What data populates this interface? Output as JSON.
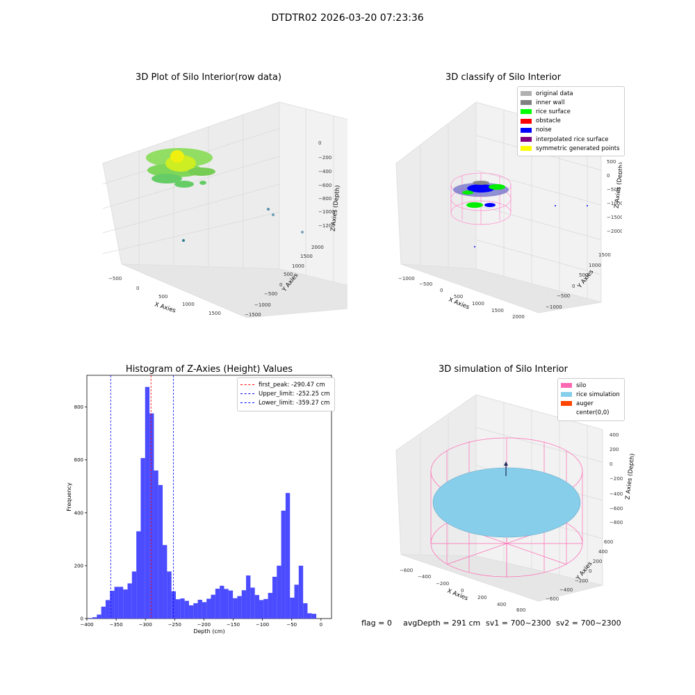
{
  "suptitle": "DTDTR02 2026-03-20 07:23:36",
  "footer": {
    "flag": "flag = 0",
    "avg_depth": "avgDepth = 291 cm",
    "sv1": "sv1 = 700~2300",
    "sv2": "sv2 = 700~2300"
  },
  "colors": {
    "histogram_bar": "#4b4bff",
    "first_peak": "#ff0000",
    "limits": "#0000ff",
    "silo": "#ff69b4",
    "rice_simulation": "#87ceeb",
    "auger": "#ff4500"
  },
  "chart_data": [
    {
      "type": "scatter",
      "title": "3D Plot of Silo Interior(row data)",
      "xlabel": "X Axies",
      "ylabel": "Y Axies",
      "zlabel": "Z Axies (Depth)",
      "x_ticks": [
        "−500",
        "0",
        "500",
        "1000",
        "1500"
      ],
      "y_ticks": [
        "−1500",
        "−1000",
        "−500",
        "0",
        "500",
        "1000",
        "1500",
        "2000"
      ],
      "z_ticks": [
        "0",
        "−200",
        "−400",
        "−600",
        "−800",
        "−1000",
        "−1200"
      ],
      "xlim": [
        -600,
        1800
      ],
      "ylim": [
        -1600,
        2100
      ],
      "zlim": [
        -1350,
        50
      ]
    },
    {
      "type": "scatter",
      "title": "3D classify of Silo Interior",
      "xlabel": "X Axies",
      "ylabel": "Y Axies",
      "zlabel": "Z Axies (Depth)",
      "x_ticks": [
        "−1000",
        "−500",
        "0",
        "500",
        "1000",
        "1500",
        "2000"
      ],
      "y_ticks": [
        "−1000",
        "−500",
        "0",
        "500",
        "1000",
        "1500"
      ],
      "z_ticks": [
        "1000",
        "500",
        "0",
        "−500",
        "−1000",
        "−1500",
        "−2000"
      ],
      "legend": [
        {
          "label": "original data",
          "color": "#b0b0b0"
        },
        {
          "label": "inner wall",
          "color": "#808080"
        },
        {
          "label": "rice surface",
          "color": "#00ff00"
        },
        {
          "label": "obstacle",
          "color": "#ff0000"
        },
        {
          "label": "noise",
          "color": "#0000ff"
        },
        {
          "label": "interpolated rice surface",
          "color": "#800080"
        },
        {
          "label": "symmetric generated points",
          "color": "#ffff00"
        }
      ],
      "legend_position": "top-right"
    },
    {
      "type": "bar",
      "title": "Histogram of Z-Axies (Height) Values",
      "xlabel": "Depth (cm)",
      "ylabel": "Frequency",
      "xlim": [
        -400,
        18
      ],
      "ylim": [
        0,
        920
      ],
      "x_ticks": [
        -400,
        -350,
        -300,
        -250,
        -200,
        -150,
        -100,
        -50,
        0
      ],
      "y_ticks": [
        0,
        200,
        400,
        600,
        800
      ],
      "bin_start": -398,
      "bin_width": 7.5,
      "values": [
        2,
        5,
        15,
        45,
        70,
        105,
        120,
        120,
        110,
        133,
        178,
        330,
        607,
        876,
        776,
        560,
        505,
        278,
        178,
        103,
        73,
        76,
        67,
        50,
        58,
        71,
        62,
        75,
        90,
        113,
        124,
        112,
        106,
        77,
        85,
        107,
        163,
        117,
        89,
        70,
        74,
        97,
        158,
        200,
        408,
        475,
        79,
        128,
        200,
        58,
        20,
        18
      ],
      "lines": [
        {
          "label": "first_peak: -290.47 cm",
          "x": -290.47,
          "color": "#ff0000"
        },
        {
          "label": "Upper_limit: -252.25 cm",
          "x": -252.25,
          "color": "#0000ff"
        },
        {
          "label": "Lower_limit: -359.27 cm",
          "x": -359.27,
          "color": "#0000ff"
        }
      ],
      "legend_position": "top-right"
    },
    {
      "type": "scatter",
      "title": "3D simulation of Silo Interior",
      "xlabel": "X Axies",
      "ylabel": "Y Axies",
      "zlabel": "Z Axies (Depth)",
      "x_ticks": [
        "−600",
        "−400",
        "−200",
        "0",
        "200",
        "400",
        "600"
      ],
      "y_ticks": [
        "−600",
        "−400",
        "−200",
        "0",
        "200",
        "400",
        "600"
      ],
      "z_ticks": [
        "400",
        "200",
        "0",
        "−200",
        "−400",
        "−600",
        "−800"
      ],
      "legend": [
        {
          "label": "silo",
          "color": "#ff69b4"
        },
        {
          "label": "rice simulation",
          "color": "#87ceeb"
        },
        {
          "label": "auger",
          "color": "#ff4500"
        },
        {
          "label": "center(0,0)",
          "color": "none"
        }
      ],
      "legend_position": "top-right"
    }
  ]
}
